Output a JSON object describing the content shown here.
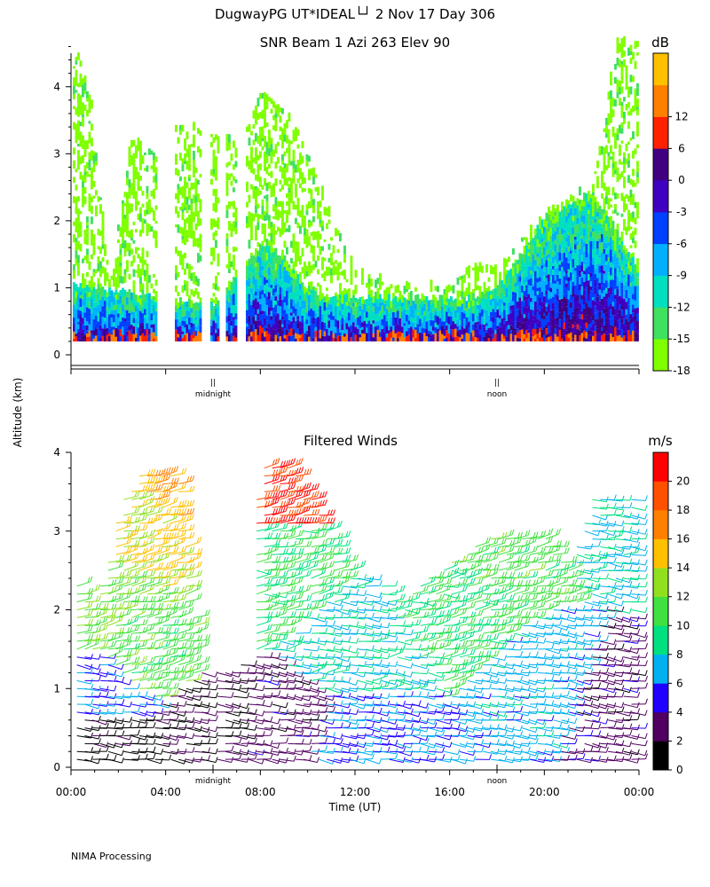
{
  "header": {
    "title": "DugwayPG UT*IDEAL└┘   2 Nov 17 Day 306"
  },
  "footer": {
    "text": "NIMA Processing"
  },
  "shared": {
    "ylabel": "Altitude (km)",
    "xlabel": "Time (UT)",
    "marker_midnight": "midnight",
    "marker_noon": "noon",
    "marker_symbol": "||"
  },
  "colors": {
    "snr_levels": [
      "#80ff00",
      "#40e060",
      "#00e0c0",
      "#00b0ff",
      "#0040ff",
      "#4000c0",
      "#400080",
      "#ff2000",
      "#ff7f00",
      "#ffc000"
    ],
    "wind_levels": [
      "#000000",
      "#500060",
      "#2000ff",
      "#00b0f0",
      "#00e080",
      "#40e040",
      "#90e020",
      "#ffc000",
      "#ff8000",
      "#ff5000",
      "#ff0000"
    ]
  },
  "chart_data": [
    {
      "type": "heatmap",
      "title": "SNR Beam 1 Azi 263 Elev 90",
      "xlabel": "",
      "ylabel": "Altitude (km)",
      "x_unit": "hours UT",
      "xlim": [
        0,
        24
      ],
      "ylim": [
        0,
        4.7
      ],
      "yticks": [
        "0",
        "1",
        "2",
        "3",
        "4"
      ],
      "grid": false,
      "colorbar": {
        "label": "dB",
        "tick_labels": [
          "-18",
          "-15",
          "-12",
          "-9",
          "-6",
          "-3",
          "0",
          "6",
          "12"
        ],
        "tick_values": [
          -18,
          -15,
          -12,
          -9,
          -6,
          -3,
          0,
          6,
          12
        ]
      },
      "annotations": [
        {
          "text": "midnight",
          "x": 6.0
        },
        {
          "text": "noon",
          "x": 18.0
        }
      ],
      "top_extent_km": [
        {
          "hour": 0.0,
          "km": 4.7
        },
        {
          "hour": 0.8,
          "km": 3.8
        },
        {
          "hour": 1.6,
          "km": 1.0
        },
        {
          "hour": 2.5,
          "km": 3.2
        },
        {
          "hour": 3.5,
          "km": 3.0
        },
        {
          "hour": 4.5,
          "km": 3.4
        },
        {
          "hour": 6.0,
          "km": 3.3
        },
        {
          "hour": 7.0,
          "km": 3.1
        },
        {
          "hour": 8.0,
          "km": 3.9
        },
        {
          "hour": 9.0,
          "km": 3.6
        },
        {
          "hour": 10.0,
          "km": 3.0
        },
        {
          "hour": 11.0,
          "km": 2.0
        },
        {
          "hour": 12.0,
          "km": 1.2
        },
        {
          "hour": 14.0,
          "km": 1.0
        },
        {
          "hour": 16.0,
          "km": 1.0
        },
        {
          "hour": 17.0,
          "km": 1.3
        },
        {
          "hour": 18.0,
          "km": 1.3
        },
        {
          "hour": 19.0,
          "km": 1.7
        },
        {
          "hour": 20.0,
          "km": 2.1
        },
        {
          "hour": 21.0,
          "km": 2.3
        },
        {
          "hour": 22.0,
          "km": 2.5
        },
        {
          "hour": 23.0,
          "km": 4.7
        },
        {
          "hour": 24.0,
          "km": 4.7
        }
      ],
      "boundary_layer_top_km": [
        {
          "hour": 0.0,
          "km": 1.0
        },
        {
          "hour": 2.0,
          "km": 0.9
        },
        {
          "hour": 4.0,
          "km": 0.8
        },
        {
          "hour": 6.0,
          "km": 0.7
        },
        {
          "hour": 8.0,
          "km": 1.6
        },
        {
          "hour": 9.0,
          "km": 1.4
        },
        {
          "hour": 10.0,
          "km": 0.9
        },
        {
          "hour": 12.0,
          "km": 0.8
        },
        {
          "hour": 14.0,
          "km": 0.8
        },
        {
          "hour": 16.0,
          "km": 0.8
        },
        {
          "hour": 17.0,
          "km": 0.8
        },
        {
          "hour": 18.0,
          "km": 1.0
        },
        {
          "hour": 19.0,
          "km": 1.5
        },
        {
          "hour": 20.0,
          "km": 2.0
        },
        {
          "hour": 21.0,
          "km": 2.2
        },
        {
          "hour": 22.0,
          "km": 2.4
        },
        {
          "hour": 23.0,
          "km": 1.8
        },
        {
          "hour": 24.0,
          "km": 1.2
        }
      ],
      "gaps_hours": [
        [
          3.6,
          4.3
        ],
        [
          5.5,
          5.8
        ],
        [
          6.2,
          6.5
        ],
        [
          7.0,
          7.3
        ]
      ]
    },
    {
      "type": "scatter",
      "title": "Filtered Winds",
      "xlabel": "Time (UT)",
      "ylabel": "Altitude (km)",
      "xlim": [
        0,
        24
      ],
      "ylim": [
        0,
        4.0
      ],
      "xticks": [
        "00:00",
        "04:00",
        "08:00",
        "12:00",
        "16:00",
        "20:00",
        "00:00"
      ],
      "yticks": [
        "0",
        "1",
        "2",
        "3",
        "4"
      ],
      "grid": false,
      "colorbar": {
        "label": "m/s",
        "tick_labels": [
          "0",
          "2",
          "4",
          "6",
          "8",
          "10",
          "12",
          "14",
          "16",
          "18",
          "20"
        ],
        "tick_values": [
          0,
          2,
          4,
          6,
          8,
          10,
          12,
          14,
          16,
          18,
          20
        ]
      },
      "annotations": [
        {
          "text": "midnight",
          "x": 6.0
        },
        {
          "text": "noon",
          "x": 18.0
        }
      ],
      "top_extent_km": [
        {
          "hour": 0.3,
          "km": 2.5
        },
        {
          "hour": 1.0,
          "km": 2.0
        },
        {
          "hour": 2.0,
          "km": 3.3
        },
        {
          "hour": 3.0,
          "km": 3.8
        },
        {
          "hour": 4.5,
          "km": 3.8
        },
        {
          "hour": 5.5,
          "km": 1.2
        },
        {
          "hour": 7.0,
          "km": 1.3
        },
        {
          "hour": 8.0,
          "km": 3.9
        },
        {
          "hour": 9.0,
          "km": 3.9
        },
        {
          "hour": 10.0,
          "km": 3.5
        },
        {
          "hour": 11.0,
          "km": 3.0
        },
        {
          "hour": 12.0,
          "km": 2.5
        },
        {
          "hour": 14.0,
          "km": 2.2
        },
        {
          "hour": 16.0,
          "km": 2.6
        },
        {
          "hour": 18.0,
          "km": 3.0
        },
        {
          "hour": 20.0,
          "km": 3.0
        },
        {
          "hour": 21.0,
          "km": 2.5
        },
        {
          "hour": 22.0,
          "km": 3.5
        },
        {
          "hour": 24.0,
          "km": 3.5
        }
      ],
      "speed_samples": [
        {
          "hour": 1.0,
          "km": 0.2,
          "speed": 1
        },
        {
          "hour": 1.0,
          "km": 1.0,
          "speed": 6
        },
        {
          "hour": 1.0,
          "km": 2.0,
          "speed": 12
        },
        {
          "hour": 3.0,
          "km": 1.5,
          "speed": 11
        },
        {
          "hour": 3.0,
          "km": 3.0,
          "speed": 14
        },
        {
          "hour": 4.5,
          "km": 3.5,
          "speed": 16
        },
        {
          "hour": 6.0,
          "km": 0.5,
          "speed": 2
        },
        {
          "hour": 8.5,
          "km": 3.7,
          "speed": 20
        },
        {
          "hour": 8.5,
          "km": 2.5,
          "speed": 10
        },
        {
          "hour": 8.5,
          "km": 0.5,
          "speed": 3
        },
        {
          "hour": 12.0,
          "km": 1.5,
          "speed": 8
        },
        {
          "hour": 12.0,
          "km": 0.3,
          "speed": 6
        },
        {
          "hour": 16.0,
          "km": 2.0,
          "speed": 10
        },
        {
          "hour": 18.0,
          "km": 2.8,
          "speed": 11
        },
        {
          "hour": 20.0,
          "km": 1.0,
          "speed": 7
        },
        {
          "hour": 22.5,
          "km": 0.8,
          "speed": 3
        },
        {
          "hour": 23.0,
          "km": 3.2,
          "speed": 8
        }
      ]
    }
  ]
}
